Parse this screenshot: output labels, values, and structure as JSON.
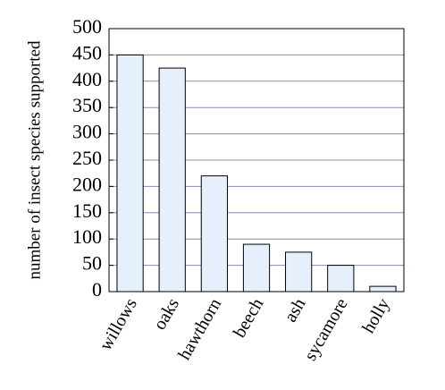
{
  "chart_data": {
    "type": "bar",
    "ylabel": "number of insect species supported",
    "categories": [
      "willows",
      "oaks",
      "hawthorn",
      "beech",
      "ash",
      "sycamore",
      "holly"
    ],
    "values": [
      450,
      425,
      220,
      90,
      75,
      50,
      10
    ],
    "color": "#e6f0fd",
    "ylim": [
      0,
      500
    ],
    "yticks": [
      0,
      50,
      100,
      150,
      200,
      250,
      300,
      350,
      400,
      450,
      500
    ],
    "grid": true
  }
}
